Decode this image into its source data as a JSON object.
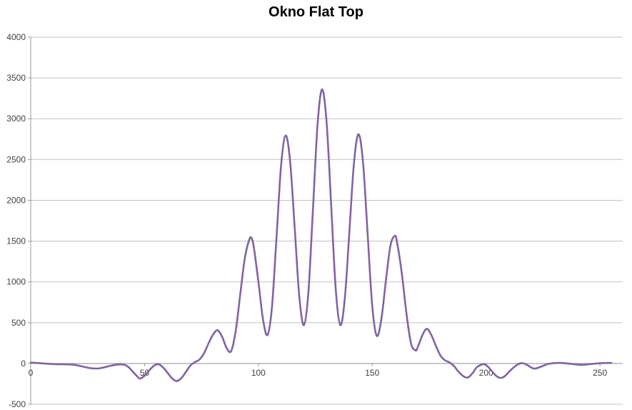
{
  "chart_data": {
    "type": "line",
    "title": "Okno Flat Top",
    "xlabel": "",
    "ylabel": "",
    "xlim": [
      0,
      260
    ],
    "ylim": [
      -500,
      4000
    ],
    "xticks": [
      0,
      50,
      100,
      150,
      200,
      250
    ],
    "yticks": [
      4000,
      3500,
      3000,
      2500,
      2000,
      1500,
      1000,
      500,
      0,
      -500
    ],
    "grid": "horizontal-only",
    "legend": "none",
    "series": [
      {
        "name": "Okno Flat Top",
        "color": "#8064A2",
        "points": [
          [
            0,
            10
          ],
          [
            2,
            8
          ],
          [
            4,
            4
          ],
          [
            6,
            0
          ],
          [
            8,
            -4
          ],
          [
            10,
            -7
          ],
          [
            12,
            -9
          ],
          [
            14,
            -10
          ],
          [
            16,
            -11
          ],
          [
            18,
            -14
          ],
          [
            20,
            -20
          ],
          [
            22,
            -32
          ],
          [
            24,
            -45
          ],
          [
            26,
            -56
          ],
          [
            29,
            -62
          ],
          [
            31,
            -55
          ],
          [
            33,
            -42
          ],
          [
            35,
            -28
          ],
          [
            37,
            -18
          ],
          [
            39,
            -12
          ],
          [
            41,
            -14
          ],
          [
            43,
            -45
          ],
          [
            45,
            -105
          ],
          [
            47,
            -165
          ],
          [
            48,
            -185
          ],
          [
            50,
            -150
          ],
          [
            52,
            -85
          ],
          [
            54,
            -30
          ],
          [
            56,
            -8
          ],
          [
            58,
            -45
          ],
          [
            60,
            -110
          ],
          [
            62,
            -180
          ],
          [
            64,
            -215
          ],
          [
            66,
            -185
          ],
          [
            68,
            -110
          ],
          [
            70,
            -30
          ],
          [
            72,
            15
          ],
          [
            74,
            45
          ],
          [
            76,
            120
          ],
          [
            78,
            240
          ],
          [
            80,
            350
          ],
          [
            82,
            408
          ],
          [
            84,
            332
          ],
          [
            86,
            192
          ],
          [
            88,
            150
          ],
          [
            90,
            395
          ],
          [
            92,
            840
          ],
          [
            94,
            1285
          ],
          [
            96,
            1520
          ],
          [
            97,
            1535
          ],
          [
            98,
            1422
          ],
          [
            100,
            1005
          ],
          [
            102,
            546
          ],
          [
            104,
            350
          ],
          [
            106,
            708
          ],
          [
            108,
            1572
          ],
          [
            110,
            2437
          ],
          [
            112,
            2795
          ],
          [
            114,
            2455
          ],
          [
            116,
            1632
          ],
          [
            118,
            810
          ],
          [
            120,
            470
          ],
          [
            122,
            893
          ],
          [
            124,
            1915
          ],
          [
            126,
            2937
          ],
          [
            128,
            3360
          ],
          [
            130,
            2937
          ],
          [
            132,
            1915
          ],
          [
            134,
            893
          ],
          [
            136,
            470
          ],
          [
            138,
            813
          ],
          [
            140,
            1640
          ],
          [
            142,
            2467
          ],
          [
            144,
            2810
          ],
          [
            146,
            2448
          ],
          [
            148,
            1575
          ],
          [
            150,
            702
          ],
          [
            152,
            340
          ],
          [
            154,
            543
          ],
          [
            156,
            1017
          ],
          [
            158,
            1448
          ],
          [
            160,
            1565
          ],
          [
            161,
            1471
          ],
          [
            163,
            1101
          ],
          [
            165,
            619
          ],
          [
            167,
            249
          ],
          [
            169,
            160
          ],
          [
            170,
            201
          ],
          [
            172,
            346
          ],
          [
            174,
            425
          ],
          [
            176,
            345
          ],
          [
            178,
            215
          ],
          [
            180,
            95
          ],
          [
            182,
            38
          ],
          [
            184,
            12
          ],
          [
            186,
            -35
          ],
          [
            188,
            -105
          ],
          [
            190,
            -155
          ],
          [
            192,
            -172
          ],
          [
            194,
            -120
          ],
          [
            196,
            -45
          ],
          [
            199,
            -8
          ],
          [
            201,
            -45
          ],
          [
            204,
            -140
          ],
          [
            206,
            -175
          ],
          [
            208,
            -160
          ],
          [
            211,
            -75
          ],
          [
            214,
            -10
          ],
          [
            216,
            3
          ],
          [
            218,
            -18
          ],
          [
            221,
            -62
          ],
          [
            224,
            -40
          ],
          [
            227,
            -8
          ],
          [
            230,
            5
          ],
          [
            233,
            7
          ],
          [
            236,
            0
          ],
          [
            239,
            -10
          ],
          [
            242,
            -18
          ],
          [
            245,
            -10
          ],
          [
            248,
            -2
          ],
          [
            251,
            5
          ],
          [
            253,
            7
          ],
          [
            255,
            8
          ]
        ]
      }
    ]
  },
  "colors": {
    "background": "#FFFFFF",
    "gridline": "#C3C3C3",
    "axis": "#9A9A9A",
    "tick": "#9A9A9A",
    "tick_label": "#3F3F3F",
    "title": "#000000",
    "line": "#8064A2"
  }
}
